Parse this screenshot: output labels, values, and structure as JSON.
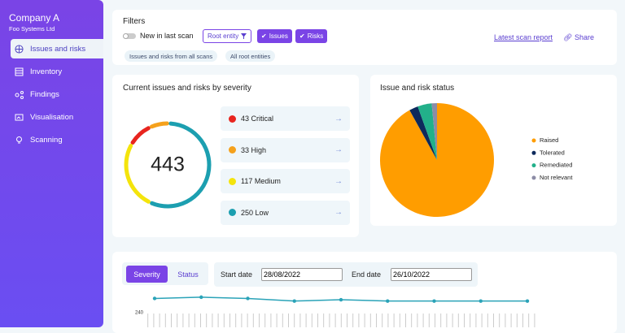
{
  "sidebar": {
    "company": "Company A",
    "subtitle": "Foo Systems Ltd",
    "nav": [
      "Issues and risks",
      "Inventory",
      "Findings",
      "Visualisation",
      "Scanning"
    ]
  },
  "filters": {
    "title": "Filters",
    "toggle": "New in last scan",
    "root_entity": "Root entity",
    "chips": [
      "Issues",
      "Risks"
    ],
    "links": [
      "Latest scan report",
      "Share"
    ],
    "tags": [
      "Issues and risks from all scans",
      "All root entities"
    ]
  },
  "severity": {
    "title": "Current issues and risks by severity",
    "total": 443,
    "items": [
      {
        "count": 43,
        "label": "Critical",
        "color": "#e8251f"
      },
      {
        "count": 33,
        "label": "High",
        "color": "#f5a11c"
      },
      {
        "count": 117,
        "label": "Medium",
        "color": "#f4e40c"
      },
      {
        "count": 250,
        "label": "Low",
        "color": "#1c9fb0"
      }
    ]
  },
  "status": {
    "title": "Issue and risk status"
  },
  "trend": {
    "tabs": [
      "Severity",
      "Status"
    ],
    "start_label": "Start date",
    "start": "28/08/2022",
    "end_label": "End date",
    "end": "26/10/2022"
  },
  "chart_data": [
    {
      "type": "pie",
      "categories": [
        "Raised",
        "Tolerated",
        "Remediated",
        "Not relevant"
      ],
      "values": [
        92,
        2.5,
        4,
        1.5
      ],
      "colors": [
        "#ff9d00",
        "#0d2a5c",
        "#22b08a",
        "#8c8ca6"
      ],
      "legend": "right"
    },
    {
      "type": "line",
      "categories": [
        null,
        null,
        null,
        null,
        null,
        null,
        null,
        null,
        null
      ],
      "series": [
        {
          "color": "#2aa3b8",
          "values": [
            251,
            252,
            251,
            249,
            250,
            249,
            249,
            249,
            249
          ]
        }
      ],
      "ylim": [
        228,
        262
      ],
      "yticks": [
        240
      ],
      "grid": false
    }
  ]
}
